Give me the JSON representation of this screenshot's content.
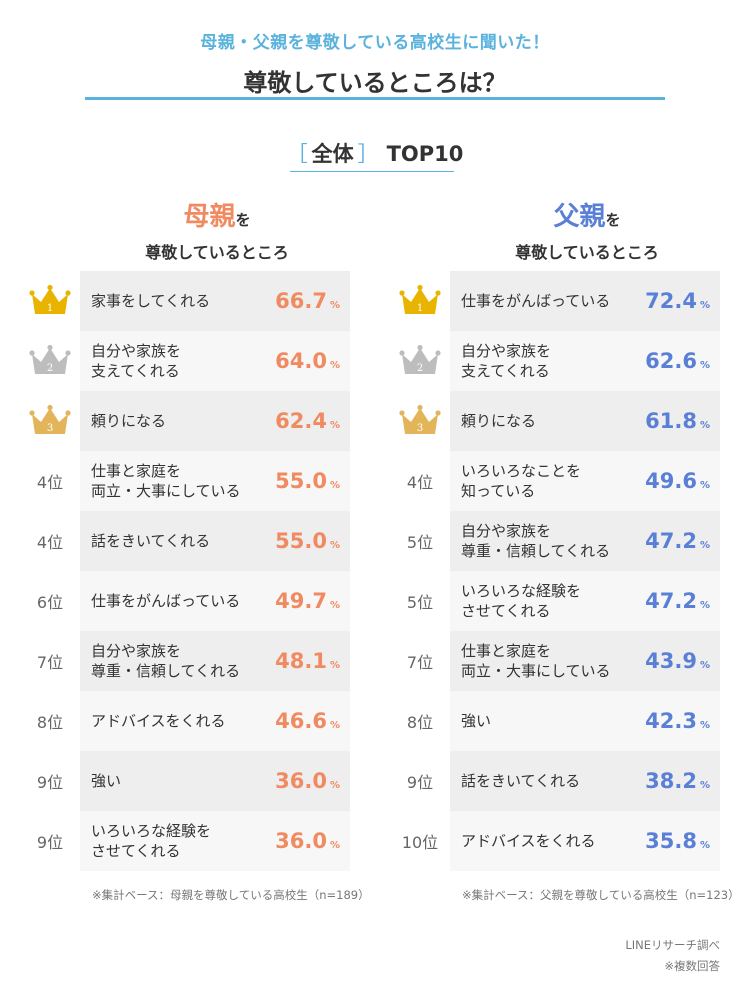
{
  "header": {
    "subtitle": "母親・父親を尊敬している高校生に聞いた！",
    "title": "尊敬しているところは？"
  },
  "section": {
    "bracket_open": "［",
    "word": "全体",
    "bracket_close": "］",
    "top": "TOP10"
  },
  "colors": {
    "accent": "#5bb3dd",
    "mother": "#f08a60",
    "father": "#5a7fd6",
    "gold": "#e8b400",
    "silver": "#bdbdbd",
    "bronze": "#e2b55a"
  },
  "chart_data": [
    {
      "type": "table",
      "head_big": "母親",
      "head_small": "を",
      "head_line2": "尊敬しているところ",
      "unit": "%",
      "note": "※集計ベース：母親を尊敬している高校生（n=189）",
      "rows": [
        {
          "rank": "1",
          "label": "家事をしてくれる",
          "value": 66.7
        },
        {
          "rank": "2",
          "label": "自分や家族を\n支えてくれる",
          "value": 64.0
        },
        {
          "rank": "3",
          "label": "頼りになる",
          "value": 62.4
        },
        {
          "rank": "4位",
          "label": "仕事と家庭を\n両立・大事にしている",
          "value": 55.0
        },
        {
          "rank": "4位",
          "label": "話をきいてくれる",
          "value": 55.0
        },
        {
          "rank": "6位",
          "label": "仕事をがんばっている",
          "value": 49.7
        },
        {
          "rank": "7位",
          "label": "自分や家族を\n尊重・信頼してくれる",
          "value": 48.1
        },
        {
          "rank": "8位",
          "label": "アドバイスをくれる",
          "value": 46.6
        },
        {
          "rank": "9位",
          "label": "強い",
          "value": 36.0
        },
        {
          "rank": "9位",
          "label": "いろいろな経験を\nさせてくれる",
          "value": 36.0
        }
      ]
    },
    {
      "type": "table",
      "head_big": "父親",
      "head_small": "を",
      "head_line2": "尊敬しているところ",
      "unit": "%",
      "note": "※集計ベース：父親を尊敬している高校生（n=123）",
      "rows": [
        {
          "rank": "1",
          "label": "仕事をがんばっている",
          "value": 72.4
        },
        {
          "rank": "2",
          "label": "自分や家族を\n支えてくれる",
          "value": 62.6
        },
        {
          "rank": "3",
          "label": "頼りになる",
          "value": 61.8
        },
        {
          "rank": "4位",
          "label": "いろいろなことを\n知っている",
          "value": 49.6
        },
        {
          "rank": "5位",
          "label": "自分や家族を\n尊重・信頼してくれる",
          "value": 47.2
        },
        {
          "rank": "5位",
          "label": "いろいろな経験を\nさせてくれる",
          "value": 47.2
        },
        {
          "rank": "7位",
          "label": "仕事と家庭を\n両立・大事にしている",
          "value": 43.9
        },
        {
          "rank": "8位",
          "label": "強い",
          "value": 42.3
        },
        {
          "rank": "9位",
          "label": "話をきいてくれる",
          "value": 38.2
        },
        {
          "rank": "10位",
          "label": "アドバイスをくれる",
          "value": 35.8
        }
      ]
    }
  ],
  "footer": {
    "source": "LINEリサーチ調べ",
    "multi": "※複数回答"
  }
}
